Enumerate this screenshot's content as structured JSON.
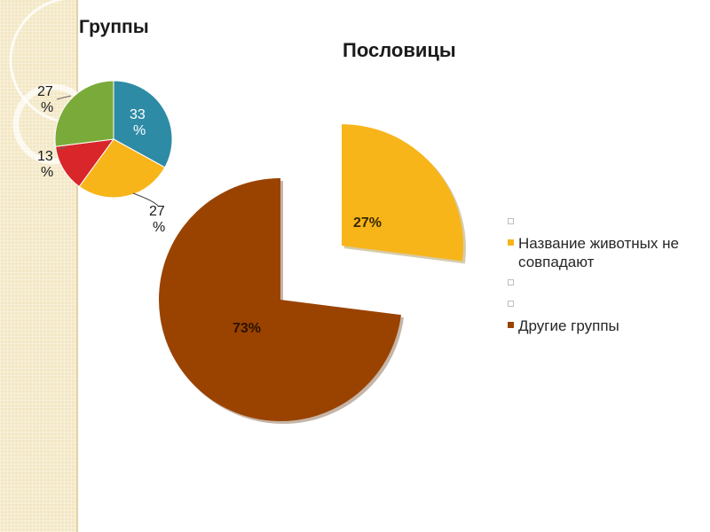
{
  "titles": {
    "small_chart": "Группы",
    "main_chart": "Пословицы"
  },
  "legend": [
    {
      "label": "",
      "color": ""
    },
    {
      "label": "Название животных не совпадают",
      "color": "#f7b51a"
    },
    {
      "label": "",
      "color": ""
    },
    {
      "label": "",
      "color": ""
    },
    {
      "label": "Другие группы",
      "color": "#9a4300"
    }
  ],
  "chart_data": [
    {
      "type": "pie",
      "title": "Группы",
      "slices": [
        {
          "value": 33,
          "label": "33\n%",
          "color": "#2e8ba6"
        },
        {
          "value": 27,
          "label": "27\n%",
          "color": "#f7b51a"
        },
        {
          "value": 13,
          "label": "13\n%",
          "color": "#d9262a"
        },
        {
          "value": 27,
          "label": "27\n%",
          "color": "#7aab3a"
        }
      ]
    },
    {
      "type": "pie",
      "title": "Пословицы",
      "slices": [
        {
          "value": 27,
          "label": "27%",
          "name": "Название животных не совпадают",
          "color": "#f7b51a",
          "exploded": true
        },
        {
          "value": 73,
          "label": "73%",
          "name": "Другие группы",
          "color": "#9a4300"
        }
      ]
    }
  ]
}
